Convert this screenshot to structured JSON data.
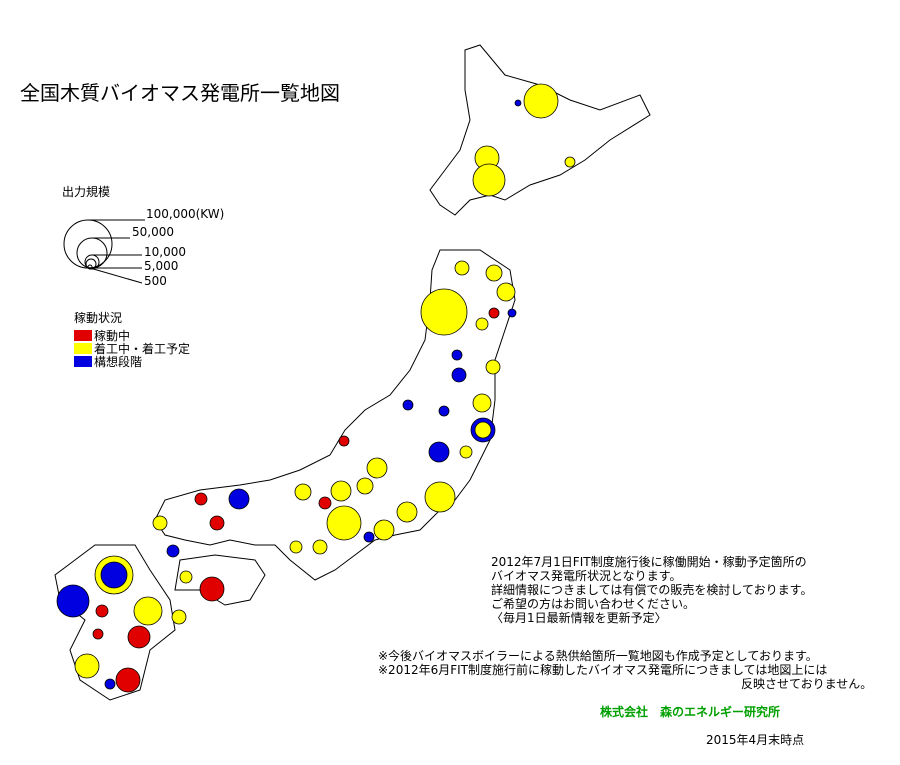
{
  "header": {
    "title": "全国木質バイオマス発電所一覧地図"
  },
  "size_legend": {
    "title": "出力規模",
    "labels": [
      "100,000(KW)",
      "50,000",
      "10,000",
      "5,000",
      "500"
    ]
  },
  "status_legend": {
    "title": "稼動状況",
    "items": [
      "稼動中",
      "着工中・着工予定",
      "構想段階"
    ]
  },
  "notes": {
    "main": [
      "2012年7月1日FIT制度施行後に稼働開始・稼動予定箇所の",
      "バイオマス発電所状況となります。",
      "詳細情報につきましては有償での販売を検討しております。",
      "ご希望の方はお問い合わせください。",
      "〈毎月1日最新情報を更新予定〉"
    ],
    "remarks": [
      "※今後バイオマスボイラーによる熱供給箇所一覧地図も作成予定としております。",
      "※2012年6月FIT制度施行前に稼動したバイオマス発電所につきましては地図上には",
      "反映させておりません。"
    ]
  },
  "footer": {
    "company": "株式会社　森のエネルギー研究所",
    "date": "2015年4月末時点"
  }
}
